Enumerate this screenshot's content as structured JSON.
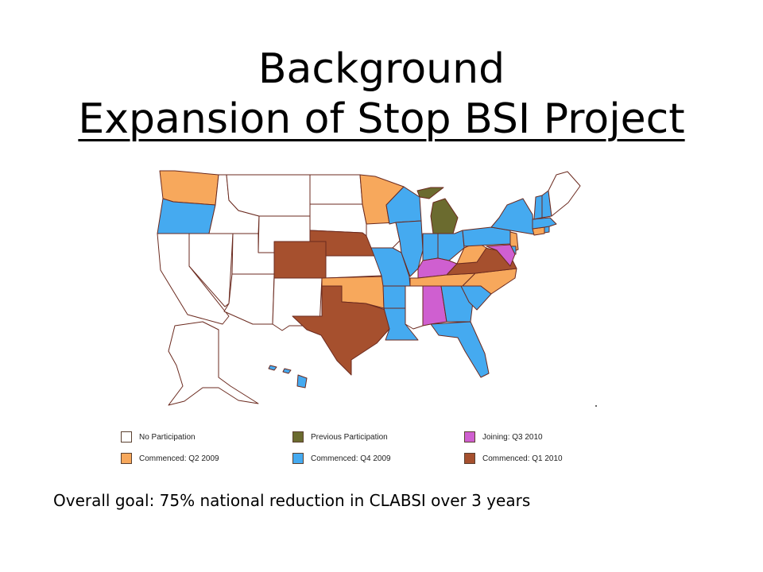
{
  "slide": {
    "title": "Background",
    "subtitle": "Expansion of Stop BSI Project",
    "goal_text": "Overall goal: 75% national reduction in CLABSI over 3 years"
  },
  "legend": [
    {
      "key": "none",
      "label": "No Participation",
      "color": "#ffffff"
    },
    {
      "key": "previous",
      "label": "Previous Participation",
      "color": "#6b6b2f"
    },
    {
      "key": "q3_2010",
      "label": "Joining: Q3 2010",
      "color": "#cf5fd0"
    },
    {
      "key": "q2_2009",
      "label": "Commenced: Q2 2009",
      "color": "#f7a85c"
    },
    {
      "key": "q4_2009",
      "label": "Commenced: Q4 2009",
      "color": "#45aaf0"
    },
    {
      "key": "q1_2010",
      "label": "Commenced: Q1 2010",
      "color": "#a6502e"
    }
  ],
  "colors": {
    "border": "#6b2a1f"
  },
  "states": {
    "WA": "q2_2009",
    "OR": "q4_2009",
    "CA": "none",
    "NV": "none",
    "ID": "none",
    "MT": "none",
    "WY": "none",
    "UT": "none",
    "AZ": "none",
    "CO": "q1_2010",
    "NM": "none",
    "ND": "none",
    "SD": "none",
    "NE": "q1_2010",
    "KS": "none",
    "OK": "q2_2009",
    "TX": "q1_2010",
    "MN": "q2_2009",
    "IA": "none",
    "MO": "q4_2009",
    "AR": "q4_2009",
    "LA": "q4_2009",
    "WI": "q4_2009",
    "IL": "q4_2009",
    "MI": "previous",
    "IN": "q4_2009",
    "OH": "q4_2009",
    "KY": "q3_2010",
    "TN": "q2_2009",
    "MS": "none",
    "AL": "q3_2010",
    "GA": "q4_2009",
    "FL": "q4_2009",
    "SC": "q4_2009",
    "NC": "q2_2009",
    "VA": "q1_2010",
    "WV": "q2_2009",
    "PA": "q4_2009",
    "NY": "q4_2009",
    "NJ": "q2_2009",
    "DE": "q4_2009",
    "MD": "q3_2010",
    "CT": "q2_2009",
    "RI": "q4_2009",
    "MA": "q4_2009",
    "VT": "q4_2009",
    "NH": "q4_2009",
    "ME": "none",
    "AK": "none",
    "HI": "q4_2009"
  }
}
